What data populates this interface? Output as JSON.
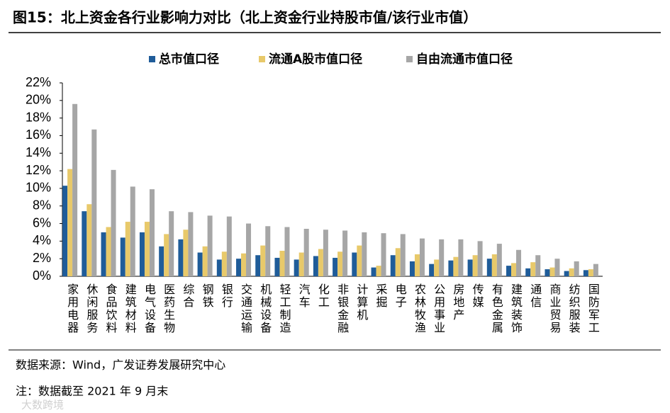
{
  "chart_data": {
    "type": "bar",
    "title": "图15：北上资金各行业影响力对比（北上资金行业持股市值/该行业市值）",
    "source": "数据来源：Wind，广发证券发展研究中心",
    "note": "注：数据截至 2021 年 9 月末",
    "watermark": "大数跨境",
    "categories": [
      "家用电器",
      "休闲服务",
      "食品饮料",
      "建筑材料",
      "电气设备",
      "医药生物",
      "综合",
      "钢铁",
      "银行",
      "交通运输",
      "机械设备",
      "轻工制造",
      "汽车",
      "化工",
      "非银金融",
      "计算机",
      "采掘",
      "电子",
      "农林牧渔",
      "公用事业",
      "房地产",
      "传媒",
      "有色金属",
      "建筑装饰",
      "通信",
      "商业贸易",
      "纺织服装",
      "国防军工"
    ],
    "series": [
      {
        "name": "总市值口径",
        "color": "#1f5c99",
        "values": [
          10.3,
          7.4,
          5.0,
          4.4,
          5.0,
          3.4,
          4.2,
          2.7,
          1.9,
          2.0,
          2.4,
          2.1,
          1.9,
          2.3,
          2.1,
          2.7,
          1.0,
          2.4,
          1.7,
          1.4,
          1.8,
          1.9,
          2.0,
          1.2,
          0.9,
          0.8,
          0.6,
          0.7
        ]
      },
      {
        "name": "流通A股市值口径",
        "color": "#e8c96a",
        "values": [
          12.2,
          8.2,
          5.6,
          6.2,
          6.2,
          4.8,
          5.3,
          3.4,
          2.8,
          2.6,
          3.5,
          2.9,
          2.7,
          3.1,
          2.8,
          3.5,
          1.2,
          3.2,
          2.5,
          1.9,
          2.2,
          2.4,
          2.5,
          1.5,
          1.6,
          1.0,
          0.9,
          0.8
        ]
      },
      {
        "name": "自由流通市值口径",
        "color": "#a6a6a6",
        "values": [
          19.6,
          16.7,
          12.1,
          10.2,
          9.9,
          7.4,
          7.3,
          6.9,
          6.8,
          6.0,
          5.7,
          5.6,
          5.4,
          5.3,
          5.2,
          5.0,
          4.9,
          4.8,
          4.3,
          4.2,
          4.2,
          4.0,
          3.7,
          3.0,
          2.4,
          2.0,
          1.7,
          1.4
        ]
      }
    ],
    "ylim": [
      0,
      22
    ],
    "yticks": [
      {
        "value": 0,
        "label": "0%"
      },
      {
        "value": 2,
        "label": "2%"
      },
      {
        "value": 4,
        "label": "4%"
      },
      {
        "value": 6,
        "label": "6%"
      },
      {
        "value": 8,
        "label": "8%"
      },
      {
        "value": 10,
        "label": "10%"
      },
      {
        "value": 12,
        "label": "12%"
      },
      {
        "value": 14,
        "label": "14%"
      },
      {
        "value": 16,
        "label": "16%"
      },
      {
        "value": 18,
        "label": "18%"
      },
      {
        "value": 20,
        "label": "20%"
      },
      {
        "value": 22,
        "label": "22%"
      }
    ],
    "grid": false,
    "legend": "top"
  }
}
